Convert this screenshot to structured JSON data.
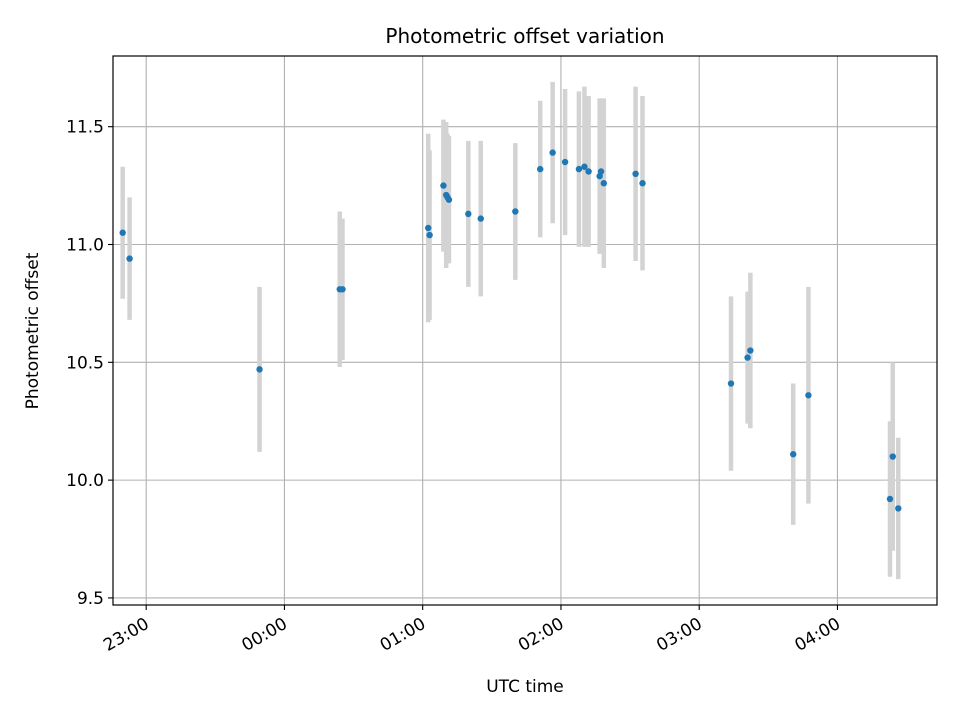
{
  "chart_data": {
    "type": "scatter",
    "title": "Photometric offset variation",
    "xlabel": "UTC time",
    "ylabel": "Photometric offset",
    "x_unit": "hours since 00:00 UTC",
    "xlim": [
      -1.24,
      4.72
    ],
    "ylim": [
      9.47,
      11.8
    ],
    "x_ticks": [
      {
        "value": -1,
        "label": "23:00"
      },
      {
        "value": 0,
        "label": "00:00"
      },
      {
        "value": 1,
        "label": "01:00"
      },
      {
        "value": 2,
        "label": "02:00"
      },
      {
        "value": 3,
        "label": "03:00"
      },
      {
        "value": 4,
        "label": "04:00"
      }
    ],
    "y_ticks": [
      {
        "value": 9.5,
        "label": "9.5"
      },
      {
        "value": 10.0,
        "label": "10.0"
      },
      {
        "value": 10.5,
        "label": "10.5"
      },
      {
        "value": 11.0,
        "label": "11.0"
      },
      {
        "value": 11.5,
        "label": "11.5"
      }
    ],
    "grid": true,
    "point_color": "#1f77b4",
    "errorbar_color": "#d3d3d3",
    "points": [
      {
        "x": -1.17,
        "y": 11.05,
        "err": 0.28
      },
      {
        "x": -1.12,
        "y": 10.94,
        "err": 0.26
      },
      {
        "x": -0.18,
        "y": 10.47,
        "err": 0.35
      },
      {
        "x": 0.4,
        "y": 10.81,
        "err": 0.33
      },
      {
        "x": 0.42,
        "y": 10.81,
        "err": 0.3
      },
      {
        "x": 1.04,
        "y": 11.07,
        "err": 0.4
      },
      {
        "x": 1.05,
        "y": 11.04,
        "err": 0.36
      },
      {
        "x": 1.15,
        "y": 11.25,
        "err": 0.28
      },
      {
        "x": 1.17,
        "y": 11.21,
        "err": 0.31
      },
      {
        "x": 1.18,
        "y": 11.2,
        "err": 0.27
      },
      {
        "x": 1.19,
        "y": 11.19,
        "err": 0.27
      },
      {
        "x": 1.33,
        "y": 11.13,
        "err": 0.31
      },
      {
        "x": 1.42,
        "y": 11.11,
        "err": 0.33
      },
      {
        "x": 1.67,
        "y": 11.14,
        "err": 0.29
      },
      {
        "x": 1.85,
        "y": 11.32,
        "err": 0.29
      },
      {
        "x": 1.94,
        "y": 11.39,
        "err": 0.3
      },
      {
        "x": 2.03,
        "y": 11.35,
        "err": 0.31
      },
      {
        "x": 2.13,
        "y": 11.32,
        "err": 0.33
      },
      {
        "x": 2.17,
        "y": 11.33,
        "err": 0.34
      },
      {
        "x": 2.2,
        "y": 11.31,
        "err": 0.32
      },
      {
        "x": 2.28,
        "y": 11.29,
        "err": 0.33
      },
      {
        "x": 2.29,
        "y": 11.31,
        "err": 0.31
      },
      {
        "x": 2.31,
        "y": 11.26,
        "err": 0.36
      },
      {
        "x": 2.54,
        "y": 11.3,
        "err": 0.37
      },
      {
        "x": 2.59,
        "y": 11.26,
        "err": 0.37
      },
      {
        "x": 3.23,
        "y": 10.41,
        "err": 0.37
      },
      {
        "x": 3.35,
        "y": 10.52,
        "err": 0.28
      },
      {
        "x": 3.37,
        "y": 10.55,
        "err": 0.33
      },
      {
        "x": 3.68,
        "y": 10.11,
        "err": 0.3
      },
      {
        "x": 3.79,
        "y": 10.36,
        "err": 0.46
      },
      {
        "x": 4.38,
        "y": 9.92,
        "err": 0.33
      },
      {
        "x": 4.4,
        "y": 10.1,
        "err": 0.4
      },
      {
        "x": 4.44,
        "y": 9.88,
        "err": 0.3
      }
    ]
  }
}
